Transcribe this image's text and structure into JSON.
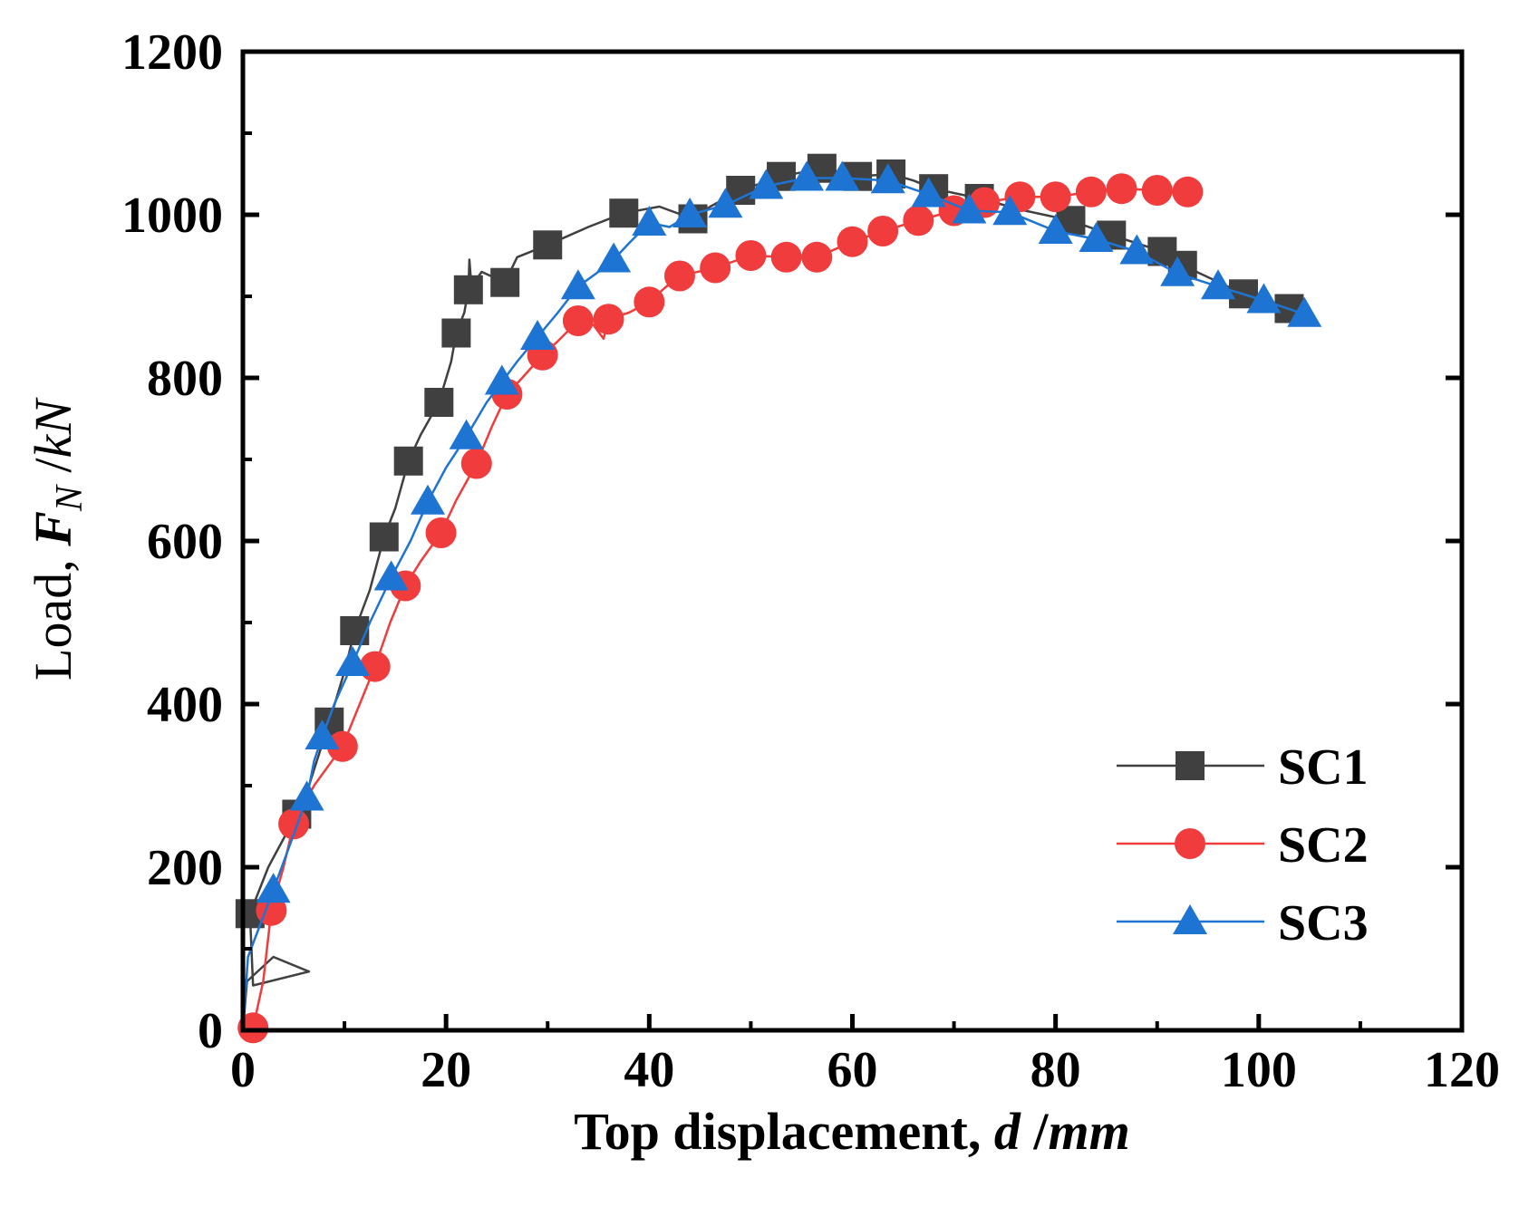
{
  "chart_data": {
    "type": "line",
    "title": "",
    "xlabel": {
      "prefix": "Top displacement, ",
      "var": "d",
      "unit_sep": " /",
      "unit": "mm"
    },
    "ylabel": {
      "prefix": "Load,  ",
      "var": "F",
      "sub": "N",
      "unit_sep": " /",
      "unit": "kN"
    },
    "xlim": [
      0,
      120
    ],
    "ylim": [
      0,
      1200
    ],
    "xticks": [
      0,
      20,
      40,
      60,
      80,
      100,
      120
    ],
    "yticks": [
      0,
      200,
      400,
      600,
      800,
      1000,
      1200
    ],
    "grid": false,
    "legend": "bottom-right",
    "series": [
      {
        "name": "SC1",
        "color": "#404040",
        "marker": "square",
        "markers": [
          [
            0.7,
            143
          ],
          [
            5.3,
            265
          ],
          [
            8.5,
            378
          ],
          [
            11.0,
            490
          ],
          [
            13.9,
            605
          ],
          [
            16.3,
            698
          ],
          [
            19.3,
            770
          ],
          [
            21.0,
            855
          ],
          [
            22.2,
            908
          ],
          [
            25.8,
            917
          ],
          [
            30.0,
            963
          ],
          [
            37.5,
            1002
          ],
          [
            44.3,
            995
          ],
          [
            49.0,
            1030
          ],
          [
            53.0,
            1047
          ],
          [
            57.0,
            1057
          ],
          [
            60.5,
            1047
          ],
          [
            63.8,
            1050
          ],
          [
            68.0,
            1032
          ],
          [
            72.5,
            1020
          ],
          [
            81.5,
            993
          ],
          [
            85.5,
            975
          ],
          [
            90.5,
            955
          ],
          [
            92.5,
            938
          ],
          [
            98.5,
            903
          ],
          [
            103.0,
            885
          ]
        ],
        "line": [
          [
            0,
            0
          ],
          [
            0.4,
            60
          ],
          [
            3,
            90
          ],
          [
            6.5,
            72
          ],
          [
            1,
            55
          ],
          [
            0.7,
            143
          ],
          [
            2.5,
            200
          ],
          [
            5.3,
            265
          ],
          [
            6.5,
            300
          ],
          [
            8.5,
            378
          ],
          [
            10,
            440
          ],
          [
            11,
            490
          ],
          [
            12.5,
            540
          ],
          [
            13.9,
            605
          ],
          [
            15,
            640
          ],
          [
            16.3,
            698
          ],
          [
            17.5,
            730
          ],
          [
            19.3,
            770
          ],
          [
            20.5,
            820
          ],
          [
            21,
            855
          ],
          [
            21.8,
            880
          ],
          [
            22.2,
            908
          ],
          [
            22.3,
            945
          ],
          [
            22.5,
            912
          ],
          [
            23.5,
            930
          ],
          [
            25.8,
            917
          ],
          [
            27,
            948
          ],
          [
            30,
            963
          ],
          [
            34,
            985
          ],
          [
            37.5,
            1002
          ],
          [
            41,
            1010
          ],
          [
            44.3,
            995
          ],
          [
            46,
            1010
          ],
          [
            49,
            1030
          ],
          [
            53,
            1047
          ],
          [
            57,
            1057
          ],
          [
            60.5,
            1047
          ],
          [
            63.8,
            1050
          ],
          [
            66,
            1042
          ],
          [
            68,
            1032
          ],
          [
            72.5,
            1020
          ],
          [
            77,
            1005
          ],
          [
            81.5,
            993
          ],
          [
            85.5,
            975
          ],
          [
            90.5,
            955
          ],
          [
            92.5,
            938
          ],
          [
            98.5,
            903
          ],
          [
            103,
            885
          ]
        ]
      },
      {
        "name": "SC2",
        "color": "#f03c3c",
        "marker": "circle",
        "markers": [
          [
            1.0,
            3
          ],
          [
            2.8,
            147
          ],
          [
            5.0,
            253
          ],
          [
            9.8,
            348
          ],
          [
            13.0,
            446
          ],
          [
            16.0,
            545
          ],
          [
            19.5,
            610
          ],
          [
            23.0,
            695
          ],
          [
            26.0,
            780
          ],
          [
            29.5,
            828
          ],
          [
            33.0,
            870
          ],
          [
            36.0,
            872
          ],
          [
            40.0,
            893
          ],
          [
            43.0,
            925
          ],
          [
            46.5,
            935
          ],
          [
            50.0,
            950
          ],
          [
            53.5,
            948
          ],
          [
            56.5,
            948
          ],
          [
            60.0,
            967
          ],
          [
            63.0,
            980
          ],
          [
            66.5,
            993
          ],
          [
            70.0,
            1005
          ],
          [
            73.0,
            1015
          ],
          [
            76.5,
            1022
          ],
          [
            80.0,
            1022
          ],
          [
            83.5,
            1028
          ],
          [
            86.5,
            1032
          ],
          [
            90.0,
            1030
          ],
          [
            93.0,
            1028
          ]
        ],
        "line": [
          [
            0.5,
            0
          ],
          [
            1,
            3
          ],
          [
            2,
            60
          ],
          [
            2.8,
            147
          ],
          [
            4,
            200
          ],
          [
            5,
            253
          ],
          [
            7,
            300
          ],
          [
            9.8,
            348
          ],
          [
            11.5,
            400
          ],
          [
            13,
            446
          ],
          [
            14.5,
            500
          ],
          [
            16,
            545
          ],
          [
            17.5,
            575
          ],
          [
            19.5,
            610
          ],
          [
            21,
            650
          ],
          [
            23,
            695
          ],
          [
            24.5,
            740
          ],
          [
            26,
            780
          ],
          [
            27.5,
            800
          ],
          [
            29.5,
            828
          ],
          [
            31,
            845
          ],
          [
            33,
            870
          ],
          [
            34.5,
            865
          ],
          [
            35.5,
            848
          ],
          [
            36,
            872
          ],
          [
            38,
            880
          ],
          [
            40,
            893
          ],
          [
            41.5,
            910
          ],
          [
            43,
            925
          ],
          [
            46.5,
            935
          ],
          [
            50,
            950
          ],
          [
            53.5,
            948
          ],
          [
            56.5,
            948
          ],
          [
            60,
            967
          ],
          [
            63,
            980
          ],
          [
            66.5,
            993
          ],
          [
            70,
            1005
          ],
          [
            73,
            1015
          ],
          [
            76.5,
            1022
          ],
          [
            80,
            1022
          ],
          [
            83.5,
            1028
          ],
          [
            86.5,
            1032
          ],
          [
            90,
            1030
          ],
          [
            93,
            1028
          ]
        ]
      },
      {
        "name": "SC3",
        "color": "#1e74d2",
        "marker": "triangle",
        "markers": [
          [
            3.0,
            172
          ],
          [
            6.3,
            285
          ],
          [
            7.8,
            360
          ],
          [
            10.8,
            450
          ],
          [
            14.6,
            555
          ],
          [
            18.2,
            648
          ],
          [
            22.0,
            728
          ],
          [
            25.5,
            795
          ],
          [
            29.0,
            850
          ],
          [
            33.0,
            912
          ],
          [
            36.5,
            945
          ],
          [
            40.0,
            990
          ],
          [
            44.0,
            1000
          ],
          [
            47.5,
            1012
          ],
          [
            51.5,
            1035
          ],
          [
            55.5,
            1045
          ],
          [
            59.0,
            1045
          ],
          [
            63.5,
            1042
          ],
          [
            67.5,
            1025
          ],
          [
            71.5,
            1005
          ],
          [
            75.5,
            1003
          ],
          [
            80.0,
            980
          ],
          [
            84.0,
            970
          ],
          [
            88.0,
            955
          ],
          [
            92.0,
            928
          ],
          [
            96.0,
            912
          ],
          [
            100.5,
            895
          ],
          [
            104.5,
            878
          ]
        ],
        "line": [
          [
            0,
            0
          ],
          [
            0.5,
            90
          ],
          [
            3,
            172
          ],
          [
            5,
            240
          ],
          [
            6.3,
            285
          ],
          [
            7,
            330
          ],
          [
            7.8,
            360
          ],
          [
            9,
            400
          ],
          [
            10.8,
            450
          ],
          [
            12.5,
            500
          ],
          [
            14.6,
            555
          ],
          [
            16.5,
            600
          ],
          [
            18.2,
            648
          ],
          [
            20,
            690
          ],
          [
            22,
            728
          ],
          [
            24,
            770
          ],
          [
            25.5,
            795
          ],
          [
            27,
            820
          ],
          [
            29,
            850
          ],
          [
            31,
            880
          ],
          [
            33,
            912
          ],
          [
            35,
            930
          ],
          [
            36.5,
            945
          ],
          [
            38,
            965
          ],
          [
            40,
            990
          ],
          [
            42,
            985
          ],
          [
            44,
            1000
          ],
          [
            47.5,
            1012
          ],
          [
            51.5,
            1035
          ],
          [
            55.5,
            1045
          ],
          [
            59,
            1045
          ],
          [
            63.5,
            1042
          ],
          [
            67.5,
            1025
          ],
          [
            71.5,
            1005
          ],
          [
            75.5,
            1003
          ],
          [
            80,
            980
          ],
          [
            84,
            970
          ],
          [
            88,
            955
          ],
          [
            92,
            928
          ],
          [
            96,
            912
          ],
          [
            100.5,
            895
          ],
          [
            104.5,
            878
          ]
        ]
      }
    ]
  }
}
